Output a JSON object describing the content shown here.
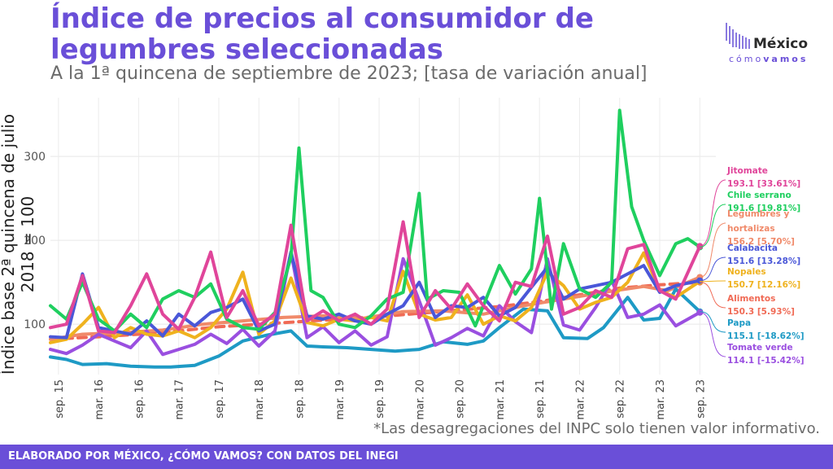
{
  "header": {
    "title": "Índice de precios al consumidor de legumbres seleccionadas",
    "subtitle": "A la 1ª quincena de septiembre de 2023; [tasa de variación anual]"
  },
  "logo": {
    "name": "México",
    "tagline_a": "cómo",
    "tagline_b": "vamos",
    "icon": "bar-stripes-logo"
  },
  "note": "*Las desagregaciones del INPC solo tienen valor informativo.",
  "footer": "ELABORADO POR MÉXICO, ¿CÓMO VAMOS? CON DATOS DEL INEGI",
  "chart_data": {
    "type": "line",
    "ylabel": "Índice base 2ª quincena de julio 2018 = 100",
    "ylim": [
      40,
      370
    ],
    "yticks": [
      100,
      200,
      300
    ],
    "xlim": [
      2015.6,
      2023.9
    ],
    "xticks": [
      {
        "x": 2015.7,
        "label": "sep. 15"
      },
      {
        "x": 2016.2,
        "label": "mar. 16"
      },
      {
        "x": 2016.7,
        "label": "sep. 16"
      },
      {
        "x": 2017.2,
        "label": "mar. 17"
      },
      {
        "x": 2017.7,
        "label": "sep. 17"
      },
      {
        "x": 2018.2,
        "label": "mar. 18"
      },
      {
        "x": 2018.7,
        "label": "sep. 18"
      },
      {
        "x": 2019.2,
        "label": "mar. 19"
      },
      {
        "x": 2019.7,
        "label": "sep. 19"
      },
      {
        "x": 2020.2,
        "label": "mar. 20"
      },
      {
        "x": 2020.7,
        "label": "sep. 20"
      },
      {
        "x": 2021.2,
        "label": "mar. 21"
      },
      {
        "x": 2021.7,
        "label": "sep. 21"
      },
      {
        "x": 2022.2,
        "label": "mar. 22"
      },
      {
        "x": 2022.7,
        "label": "sep. 22"
      },
      {
        "x": 2023.2,
        "label": "mar. 23"
      },
      {
        "x": 2023.7,
        "label": "sep. 23"
      }
    ],
    "grid": true,
    "series": [
      {
        "name": "Alimentos",
        "color": "#f06a55",
        "dashed": true,
        "label": "150.3 [5.93%]",
        "x": [
          2015.6,
          2016.2,
          2016.7,
          2017.2,
          2017.7,
          2018.2,
          2018.7,
          2019.2,
          2019.7,
          2020.2,
          2020.7,
          2021.2,
          2021.7,
          2022.2,
          2022.7,
          2023.2,
          2023.7
        ],
        "y": [
          82,
          85,
          88,
          92,
          97,
          100,
          103,
          106,
          109,
          113,
          117,
          121,
          127,
          135,
          143,
          147,
          150
        ]
      },
      {
        "name": "Legumbres y hortalizas",
        "color": "#f08a6a",
        "dashed": false,
        "label": "156.2 [5.70%]",
        "x": [
          2015.6,
          2016.0,
          2016.5,
          2017.0,
          2017.5,
          2018.0,
          2018.5,
          2019.0,
          2019.5,
          2020.0,
          2020.5,
          2021.0,
          2021.5,
          2022.0,
          2022.5,
          2023.0,
          2023.3,
          2023.7
        ],
        "y": [
          82,
          88,
          90,
          93,
          100,
          104,
          108,
          110,
          107,
          115,
          116,
          112,
          122,
          130,
          138,
          145,
          140,
          156
        ]
      },
      {
        "name": "Papa",
        "color": "#1e9ac5",
        "dashed": false,
        "label": "115.1 [-18.62%]",
        "x": [
          2015.6,
          2015.8,
          2016.0,
          2016.3,
          2016.6,
          2016.9,
          2017.1,
          2017.4,
          2017.7,
          2018.0,
          2018.3,
          2018.6,
          2018.8,
          2019.0,
          2019.3,
          2019.6,
          2019.9,
          2020.2,
          2020.5,
          2020.8,
          2021.0,
          2021.2,
          2021.5,
          2021.8,
          2022.0,
          2022.3,
          2022.5,
          2022.8,
          2023.0,
          2023.2,
          2023.4,
          2023.7
        ],
        "y": [
          61,
          58,
          52,
          53,
          50,
          49,
          49,
          51,
          62,
          80,
          87,
          92,
          74,
          73,
          72,
          70,
          68,
          70,
          79,
          76,
          80,
          96,
          118,
          116,
          84,
          83,
          96,
          132,
          105,
          107,
          142,
          115
        ]
      },
      {
        "name": "Tomate verde",
        "color": "#9a4fe0",
        "dashed": false,
        "label": "114.1 [-15.42%]",
        "x": [
          2015.6,
          2015.8,
          2016.0,
          2016.2,
          2016.4,
          2016.6,
          2016.8,
          2017.0,
          2017.2,
          2017.4,
          2017.6,
          2017.8,
          2018.0,
          2018.2,
          2018.4,
          2018.6,
          2018.8,
          2019.0,
          2019.2,
          2019.4,
          2019.6,
          2019.8,
          2020.0,
          2020.2,
          2020.4,
          2020.6,
          2020.8,
          2021.0,
          2021.2,
          2021.4,
          2021.6,
          2021.8,
          2022.0,
          2022.2,
          2022.4,
          2022.6,
          2022.8,
          2023.0,
          2023.2,
          2023.4,
          2023.7
        ],
        "y": [
          70,
          65,
          75,
          88,
          80,
          72,
          92,
          64,
          70,
          76,
          88,
          77,
          94,
          74,
          92,
          186,
          84,
          97,
          78,
          92,
          75,
          85,
          178,
          128,
          75,
          84,
          95,
          86,
          122,
          103,
          90,
          178,
          99,
          93,
          120,
          152,
          108,
          112,
          123,
          98,
          114
        ]
      },
      {
        "name": "Nopales",
        "color": "#efb21e",
        "dashed": false,
        "label": "150.7 [12.16%]",
        "x": [
          2015.6,
          2015.8,
          2016.0,
          2016.2,
          2016.4,
          2016.6,
          2016.8,
          2017.0,
          2017.2,
          2017.4,
          2017.6,
          2017.8,
          2018.0,
          2018.2,
          2018.4,
          2018.6,
          2018.8,
          2019.0,
          2019.2,
          2019.4,
          2019.6,
          2019.8,
          2020.0,
          2020.2,
          2020.4,
          2020.6,
          2020.8,
          2021.0,
          2021.2,
          2021.4,
          2021.6,
          2021.8,
          2022.0,
          2022.2,
          2022.4,
          2022.6,
          2022.8,
          2023.0,
          2023.2,
          2023.4,
          2023.7
        ],
        "y": [
          78,
          82,
          100,
          120,
          84,
          96,
          88,
          86,
          92,
          84,
          96,
          118,
          162,
          88,
          104,
          155,
          102,
          98,
          106,
          104,
          108,
          104,
          163,
          112,
          105,
          108,
          135,
          100,
          110,
          104,
          120,
          162,
          146,
          118,
          126,
          132,
          150,
          185,
          140,
          132,
          151
        ]
      },
      {
        "name": "Calabacita",
        "color": "#4a57d8",
        "dashed": false,
        "label": "151.6 [13.28%]",
        "x": [
          2015.6,
          2015.8,
          2016.0,
          2016.2,
          2016.4,
          2016.6,
          2016.8,
          2017.0,
          2017.2,
          2017.4,
          2017.6,
          2017.8,
          2018.0,
          2018.2,
          2018.4,
          2018.6,
          2018.8,
          2019.0,
          2019.2,
          2019.4,
          2019.6,
          2019.8,
          2020.0,
          2020.2,
          2020.4,
          2020.6,
          2020.8,
          2021.0,
          2021.2,
          2021.4,
          2021.6,
          2021.8,
          2022.0,
          2022.2,
          2022.4,
          2022.6,
          2022.8,
          2023.0,
          2023.2,
          2023.4,
          2023.7
        ],
        "y": [
          85,
          84,
          160,
          96,
          92,
          88,
          104,
          86,
          112,
          98,
          114,
          120,
          130,
          92,
          100,
          186,
          110,
          106,
          112,
          104,
          100,
          112,
          122,
          150,
          108,
          122,
          120,
          132,
          110,
          120,
          144,
          168,
          130,
          142,
          146,
          150,
          160,
          170,
          138,
          146,
          152
        ]
      },
      {
        "name": "Chile serrano",
        "color": "#1fcf5f",
        "dashed": false,
        "label": "191.6 [19.81%]",
        "x": [
          2015.6,
          2015.8,
          2016.0,
          2016.2,
          2016.4,
          2016.6,
          2016.8,
          2017.0,
          2017.2,
          2017.4,
          2017.6,
          2017.8,
          2018.0,
          2018.2,
          2018.4,
          2018.6,
          2018.7,
          2018.85,
          2019.0,
          2019.2,
          2019.4,
          2019.6,
          2019.8,
          2020.0,
          2020.2,
          2020.3,
          2020.5,
          2020.7,
          2020.9,
          2021.0,
          2021.2,
          2021.4,
          2021.6,
          2021.7,
          2021.85,
          2022.0,
          2022.2,
          2022.4,
          2022.6,
          2022.7,
          2022.85,
          2023.0,
          2023.2,
          2023.4,
          2023.55,
          2023.7
        ],
        "y": [
          122,
          106,
          150,
          106,
          92,
          112,
          96,
          130,
          140,
          132,
          148,
          106,
          96,
          94,
          114,
          180,
          310,
          140,
          132,
          100,
          96,
          110,
          130,
          138,
          256,
          130,
          140,
          138,
          98,
          122,
          170,
          136,
          166,
          250,
          118,
          196,
          142,
          132,
          150,
          355,
          240,
          200,
          158,
          196,
          202,
          192
        ]
      },
      {
        "name": "Jitomate",
        "color": "#e0459a",
        "dashed": false,
        "label": "193.1 [33.61%]",
        "x": [
          2015.6,
          2015.8,
          2016.0,
          2016.2,
          2016.4,
          2016.6,
          2016.8,
          2017.0,
          2017.2,
          2017.4,
          2017.6,
          2017.8,
          2018.0,
          2018.2,
          2018.4,
          2018.6,
          2018.8,
          2019.0,
          2019.2,
          2019.4,
          2019.6,
          2019.8,
          2020.0,
          2020.2,
          2020.4,
          2020.6,
          2020.8,
          2021.0,
          2021.2,
          2021.4,
          2021.6,
          2021.8,
          2022.0,
          2022.2,
          2022.4,
          2022.6,
          2022.8,
          2023.0,
          2023.2,
          2023.4,
          2023.7
        ],
        "y": [
          96,
          100,
          158,
          92,
          90,
          122,
          160,
          112,
          94,
          132,
          186,
          108,
          140,
          98,
          112,
          218,
          104,
          116,
          104,
          112,
          100,
          118,
          222,
          108,
          140,
          118,
          148,
          122,
          104,
          150,
          145,
          205,
          112,
          120,
          140,
          132,
          190,
          195,
          140,
          130,
          193
        ]
      }
    ]
  }
}
